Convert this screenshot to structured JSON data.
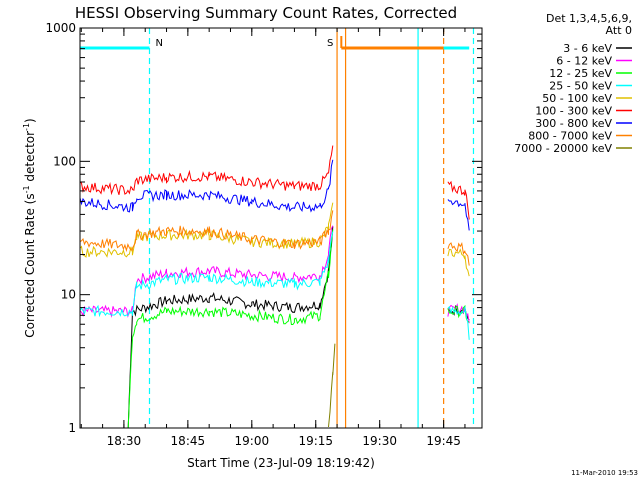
{
  "chart_data": {
    "type": "line",
    "title": "HESSI Observing Summary Count Rates, Corrected",
    "xlabel": "Start Time (23-Jul-09 18:19:42)",
    "ylabel": "Corrected Count Rate (s",
    "ylabel_sup1": "-1",
    "ylabel_mid": " detector",
    "ylabel_sup2": "-1",
    "ylabel_end": ")",
    "yscale": "log",
    "ylim": [
      1,
      1000
    ],
    "xlim": [
      "18:19:42",
      "19:54:00"
    ],
    "x_ticks": [
      "18:30",
      "18:45",
      "19:00",
      "19:15",
      "19:30",
      "19:45"
    ],
    "y_ticks": [
      "1",
      "10",
      "100",
      "1000"
    ],
    "legend_header": [
      "Det 1,3,4,5,6,9,",
      "Att 0"
    ],
    "legend_position": "right, outside plot",
    "timestamp": "11-Mar-2010 19:53",
    "flag_labels": [
      {
        "text": "N",
        "time": "18:36",
        "color": "#00ffff"
      },
      {
        "text": "S",
        "time": "19:20",
        "color": "#ff8000"
      }
    ],
    "flag_bars": [
      {
        "name": "night",
        "color": "#00ffff",
        "segments": [
          [
            "18:19:42",
            "18:36"
          ],
          [
            "19:39",
            "19:51"
          ]
        ]
      },
      {
        "name": "saa",
        "color": "#ff8000",
        "segments": [
          [
            "19:21",
            "19:45"
          ]
        ]
      }
    ],
    "flag_lines": [
      {
        "time": "18:36",
        "color": "#00ffff",
        "style": "dashed"
      },
      {
        "time": "19:20",
        "color": "#ff8000",
        "style": "solid"
      },
      {
        "time": "19:22",
        "color": "#ff8000",
        "style": "solid"
      },
      {
        "time": "19:39",
        "color": "#00ffff",
        "style": "solid"
      },
      {
        "time": "19:45",
        "color": "#ff8000",
        "style": "dashed"
      },
      {
        "time": "19:52",
        "color": "#00ffff",
        "style": "dashed"
      }
    ],
    "series": [
      {
        "name": "3 - 6 keV",
        "color": "#000000",
        "segments": [
          [
            [
              "18:30",
              1
            ],
            [
              "18:31",
              1
            ],
            [
              "18:32",
              7.5
            ],
            [
              "18:40",
              9
            ],
            [
              "18:50",
              9.5
            ],
            [
              "19:00",
              8.5
            ],
            [
              "19:10",
              8
            ],
            [
              "19:16",
              8.5
            ],
            [
              "19:18",
              15
            ],
            [
              "19:19",
              30
            ]
          ],
          [
            [
              "19:46",
              7.5
            ],
            [
              "19:50",
              8
            ],
            [
              "19:51",
              6
            ]
          ]
        ]
      },
      {
        "name": "6 - 12 keV",
        "color": "#ff00ff",
        "segments": [
          [
            [
              "18:19:42",
              7.5
            ],
            [
              "18:32",
              7.5
            ],
            [
              "18:33",
              13
            ],
            [
              "18:40",
              14.5
            ],
            [
              "18:50",
              15
            ],
            [
              "19:00",
              14
            ],
            [
              "19:10",
              13.5
            ],
            [
              "19:16",
              14
            ],
            [
              "19:18",
              20
            ],
            [
              "19:19",
              35
            ]
          ],
          [
            [
              "19:46",
              7.5
            ],
            [
              "19:50",
              8
            ],
            [
              "19:51",
              6
            ]
          ]
        ]
      },
      {
        "name": "12 - 25 keV",
        "color": "#00ff00",
        "segments": [
          [
            [
              "18:19:42",
              1
            ],
            [
              "18:31",
              1
            ],
            [
              "18:32",
              5
            ],
            [
              "18:33",
              6.5
            ],
            [
              "18:40",
              7.5
            ],
            [
              "18:50",
              7.5
            ],
            [
              "19:00",
              7
            ],
            [
              "19:10",
              6.5
            ],
            [
              "19:16",
              7
            ],
            [
              "19:18",
              14
            ],
            [
              "19:19",
              32
            ]
          ],
          [
            [
              "19:46",
              7.5
            ],
            [
              "19:50",
              7.5
            ],
            [
              "19:51",
              6
            ]
          ]
        ]
      },
      {
        "name": "25 - 50 keV",
        "color": "#00ffff",
        "segments": [
          [
            [
              "18:19:42",
              7.5
            ],
            [
              "18:32",
              7.5
            ],
            [
              "18:33",
              11.5
            ],
            [
              "18:40",
              13
            ],
            [
              "18:50",
              13.5
            ],
            [
              "19:00",
              12.5
            ],
            [
              "19:10",
              12
            ],
            [
              "19:16",
              12.5
            ],
            [
              "19:18",
              18
            ],
            [
              "19:19",
              32
            ]
          ],
          [
            [
              "19:46",
              7.5
            ],
            [
              "19:50",
              7.5
            ],
            [
              "19:51",
              5
            ]
          ]
        ]
      },
      {
        "name": "50 - 100 keV",
        "color": "#e0c000",
        "segments": [
          [
            [
              "18:19:42",
              21
            ],
            [
              "18:32",
              21
            ],
            [
              "18:33",
              27
            ],
            [
              "18:40",
              28
            ],
            [
              "18:50",
              28
            ],
            [
              "19:00",
              25
            ],
            [
              "19:10",
              24
            ],
            [
              "19:16",
              25
            ],
            [
              "19:18",
              32
            ],
            [
              "19:19",
              45
            ]
          ],
          [
            [
              "19:46",
              21
            ],
            [
              "19:50",
              20
            ],
            [
              "19:51",
              13
            ]
          ]
        ]
      },
      {
        "name": "100 - 300 keV",
        "color": "#ff0000",
        "segments": [
          [
            [
              "18:19:42",
              65
            ],
            [
              "18:32",
              60
            ],
            [
              "18:33",
              72
            ],
            [
              "18:40",
              76
            ],
            [
              "18:50",
              77
            ],
            [
              "19:00",
              70
            ],
            [
              "19:10",
              65
            ],
            [
              "19:16",
              66
            ],
            [
              "19:18",
              80
            ],
            [
              "19:19",
              130
            ]
          ],
          [
            [
              "19:46",
              65
            ],
            [
              "19:50",
              60
            ],
            [
              "19:51",
              40
            ]
          ]
        ]
      },
      {
        "name": "300 - 800 keV",
        "color": "#0000ff",
        "segments": [
          [
            [
              "18:19:42",
              50
            ],
            [
              "18:32",
              45
            ],
            [
              "18:33",
              55
            ],
            [
              "18:40",
              56
            ],
            [
              "18:50",
              56
            ],
            [
              "19:00",
              50
            ],
            [
              "19:10",
              45
            ],
            [
              "19:16",
              46
            ],
            [
              "19:18",
              60
            ],
            [
              "19:19",
              100
            ]
          ],
          [
            [
              "19:46",
              52
            ],
            [
              "19:50",
              48
            ],
            [
              "19:51",
              28
            ]
          ]
        ]
      },
      {
        "name": "800 - 7000 keV",
        "color": "#ff8000",
        "segments": [
          [
            [
              "18:19:42",
              25
            ],
            [
              "18:32",
              23
            ],
            [
              "18:33",
              28
            ],
            [
              "18:40",
              30
            ],
            [
              "18:50",
              30
            ],
            [
              "19:00",
              26
            ],
            [
              "19:10",
              24
            ],
            [
              "19:16",
              25
            ],
            [
              "19:18",
              30
            ],
            [
              "19:19",
              42
            ]
          ],
          [
            [
              "19:46",
              24
            ],
            [
              "19:50",
              22
            ],
            [
              "19:51",
              17
            ]
          ]
        ]
      },
      {
        "name": "7000 - 20000 keV",
        "color": "#808000",
        "segments": [
          [
            [
              "19:18",
              1
            ],
            [
              "19:19",
              2.5
            ],
            [
              "19:19:30",
              4
            ]
          ]
        ]
      }
    ]
  }
}
